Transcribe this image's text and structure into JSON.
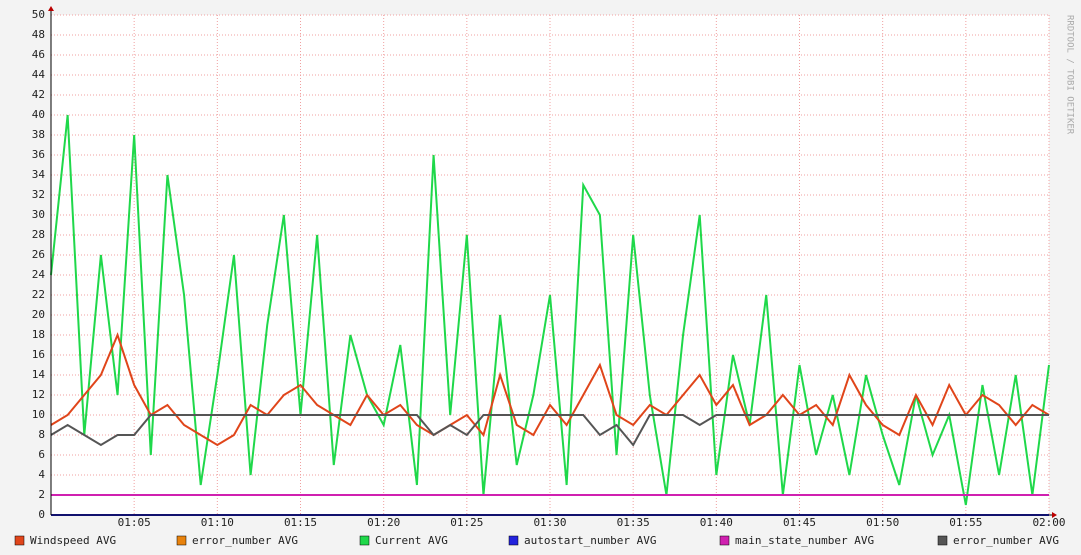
{
  "chart_data": {
    "type": "line",
    "watermark": "RRDTOOL / TOBI OETIKER",
    "x": [
      60,
      61,
      62,
      63,
      64,
      65,
      66,
      67,
      68,
      69,
      70,
      71,
      72,
      73,
      74,
      75,
      76,
      77,
      78,
      79,
      80,
      81,
      82,
      83,
      84,
      85,
      86,
      87,
      88,
      89,
      90,
      91,
      92,
      93,
      94,
      95,
      96,
      97,
      98,
      99,
      100,
      101,
      102,
      103,
      104,
      105,
      106,
      107,
      108,
      109,
      110,
      111,
      112,
      113,
      114,
      115,
      116,
      117,
      118,
      119,
      120
    ],
    "xlim": [
      60,
      120
    ],
    "xticks": [
      {
        "value": 65,
        "label": "01:05"
      },
      {
        "value": 70,
        "label": "01:10"
      },
      {
        "value": 75,
        "label": "01:15"
      },
      {
        "value": 80,
        "label": "01:20"
      },
      {
        "value": 85,
        "label": "01:25"
      },
      {
        "value": 90,
        "label": "01:30"
      },
      {
        "value": 95,
        "label": "01:35"
      },
      {
        "value": 100,
        "label": "01:40"
      },
      {
        "value": 105,
        "label": "01:45"
      },
      {
        "value": 110,
        "label": "01:50"
      },
      {
        "value": 115,
        "label": "01:55"
      },
      {
        "value": 120,
        "label": "02:00"
      }
    ],
    "ylim": [
      0,
      50
    ],
    "yticks": [
      0,
      2,
      4,
      6,
      8,
      10,
      12,
      14,
      16,
      18,
      20,
      22,
      24,
      26,
      28,
      30,
      32,
      34,
      36,
      38,
      40,
      42,
      44,
      46,
      48,
      50
    ],
    "grid": true,
    "series": [
      {
        "name": "Windspeed AVG",
        "color": "#e0451a",
        "values": [
          9,
          10,
          12,
          14,
          18,
          13,
          10,
          11,
          9,
          8,
          7,
          8,
          11,
          10,
          12,
          13,
          11,
          10,
          9,
          12,
          10,
          11,
          9,
          8,
          9,
          10,
          8,
          14,
          9,
          8,
          11,
          9,
          12,
          15,
          10,
          9,
          11,
          10,
          12,
          14,
          11,
          13,
          9,
          10,
          12,
          10,
          11,
          9,
          14,
          11,
          9,
          8,
          12,
          9,
          13,
          10,
          12,
          11,
          9,
          11,
          10
        ]
      },
      {
        "name": "error_number AVG",
        "color": "#e8820c",
        "values": [
          0,
          0,
          0,
          0,
          0,
          0,
          0,
          0,
          0,
          0,
          0,
          0,
          0,
          0,
          0,
          0,
          0,
          0,
          0,
          0,
          0,
          0,
          0,
          0,
          0,
          0,
          0,
          0,
          0,
          0,
          0,
          0,
          0,
          0,
          0,
          0,
          0,
          0,
          0,
          0,
          0,
          0,
          0,
          0,
          0,
          0,
          0,
          0,
          0,
          0,
          0,
          0,
          0,
          0,
          0,
          0,
          0,
          0,
          0,
          0,
          0
        ]
      },
      {
        "name": "Current AVG",
        "color": "#1fd84a",
        "values": [
          24,
          40,
          8,
          26,
          12,
          38,
          6,
          34,
          22,
          3,
          14,
          26,
          4,
          19,
          30,
          10,
          28,
          5,
          18,
          12,
          9,
          17,
          3,
          36,
          10,
          28,
          2,
          20,
          5,
          12,
          22,
          3,
          33,
          30,
          6,
          28,
          12,
          2,
          18,
          30,
          4,
          16,
          9,
          22,
          2,
          15,
          6,
          12,
          4,
          14,
          8,
          3,
          12,
          6,
          10,
          1,
          13,
          4,
          14,
          2,
          15
        ]
      },
      {
        "name": "autostart_number AVG",
        "color": "#2222dd",
        "values": [
          0,
          0,
          0,
          0,
          0,
          0,
          0,
          0,
          0,
          0,
          0,
          0,
          0,
          0,
          0,
          0,
          0,
          0,
          0,
          0,
          0,
          0,
          0,
          0,
          0,
          0,
          0,
          0,
          0,
          0,
          0,
          0,
          0,
          0,
          0,
          0,
          0,
          0,
          0,
          0,
          0,
          0,
          0,
          0,
          0,
          0,
          0,
          0,
          0,
          0,
          0,
          0,
          0,
          0,
          0,
          0,
          0,
          0,
          0,
          0,
          0
        ]
      },
      {
        "name": "main_state_number AVG",
        "color": "#d020b0",
        "values": [
          2,
          2,
          2,
          2,
          2,
          2,
          2,
          2,
          2,
          2,
          2,
          2,
          2,
          2,
          2,
          2,
          2,
          2,
          2,
          2,
          2,
          2,
          2,
          2,
          2,
          2,
          2,
          2,
          2,
          2,
          2,
          2,
          2,
          2,
          2,
          2,
          2,
          2,
          2,
          2,
          2,
          2,
          2,
          2,
          2,
          2,
          2,
          2,
          2,
          2,
          2,
          2,
          2,
          2,
          2,
          2,
          2,
          2,
          2,
          2,
          2
        ]
      },
      {
        "name": "error_number AVG",
        "color": "#555555",
        "values": [
          8,
          9,
          8,
          7,
          8,
          8,
          10,
          10,
          10,
          10,
          10,
          10,
          10,
          10,
          10,
          10,
          10,
          10,
          10,
          10,
          10,
          10,
          10,
          8,
          9,
          8,
          10,
          10,
          10,
          10,
          10,
          10,
          10,
          8,
          9,
          7,
          10,
          10,
          10,
          9,
          10,
          10,
          10,
          10,
          10,
          10,
          10,
          10,
          10,
          10,
          10,
          10,
          10,
          10,
          10,
          10,
          10,
          10,
          10,
          10,
          10
        ]
      }
    ]
  }
}
